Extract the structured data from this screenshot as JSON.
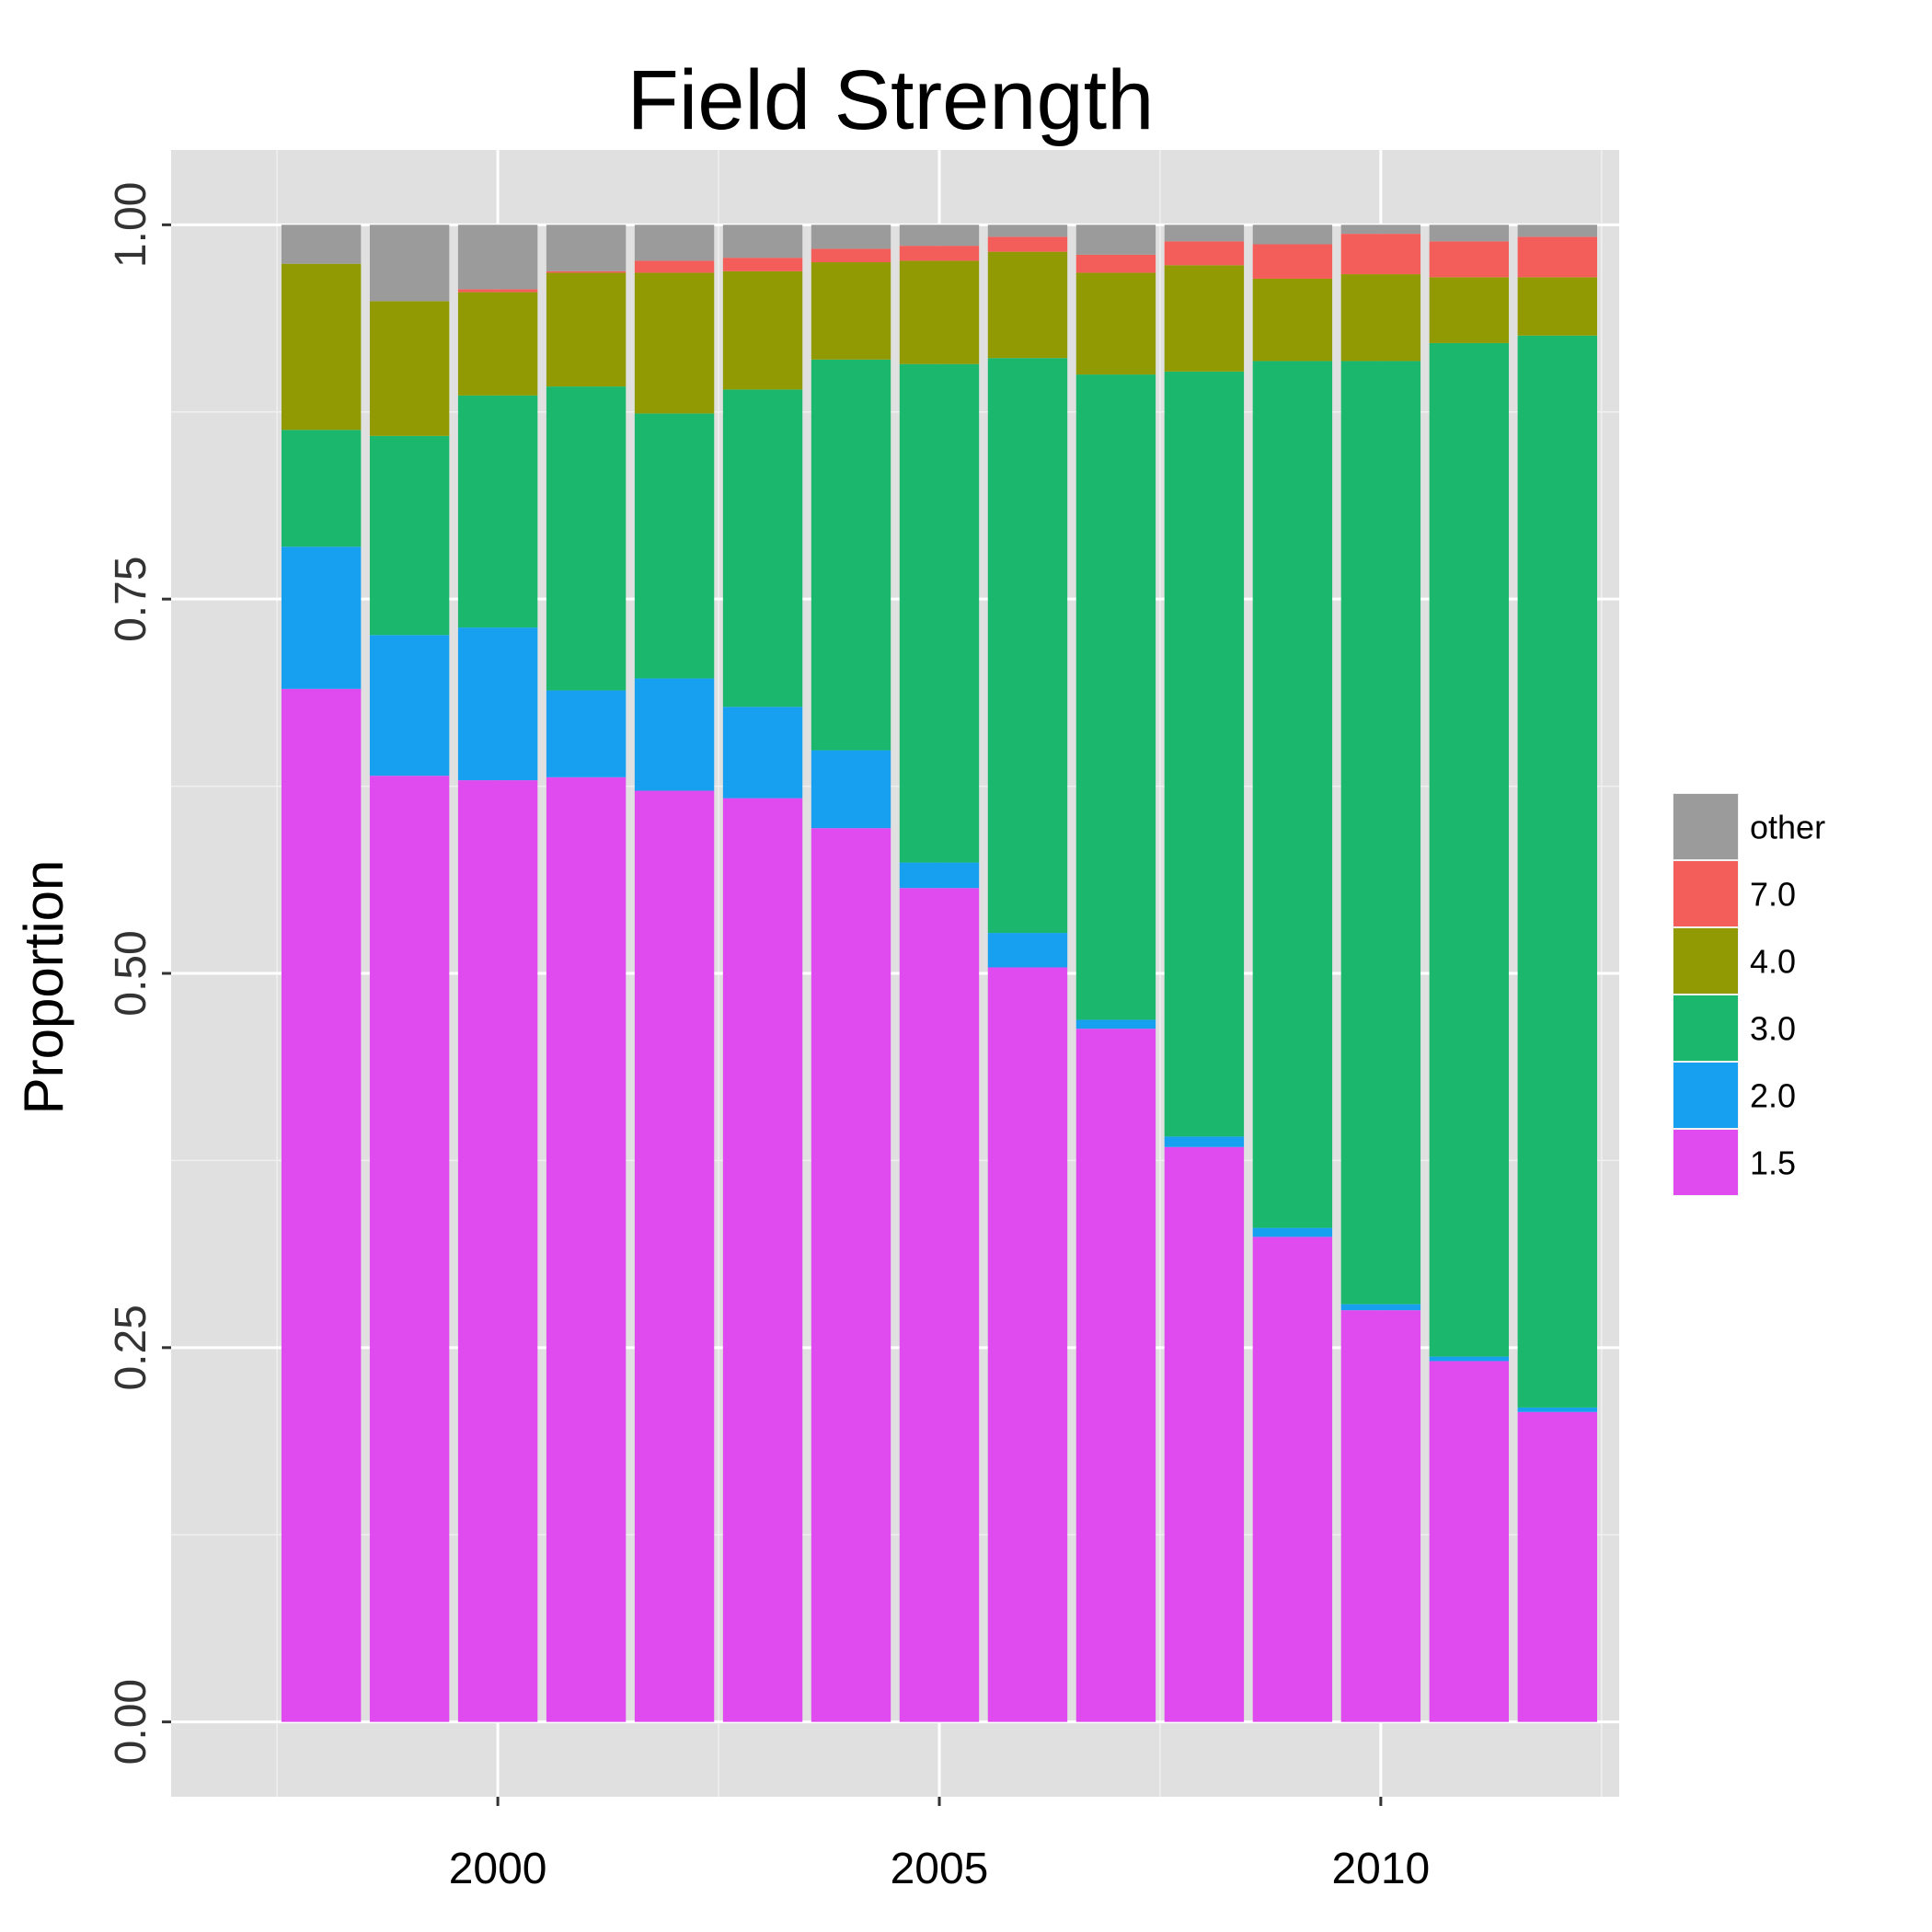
{
  "chart_data": {
    "type": "bar",
    "stacked": true,
    "title": "Field Strength",
    "xlabel": "",
    "ylabel": "Proportion",
    "ylim": [
      -0.05,
      1.05
    ],
    "xlim": [
      1996.3,
      2012.7
    ],
    "grid": true,
    "legend_position": "right",
    "categories": [
      1998,
      1999,
      2000,
      2001,
      2002,
      2003,
      2004,
      2005,
      2006,
      2007,
      2008,
      2009,
      2010,
      2011,
      2012
    ],
    "x_ticks": [
      2000,
      2005,
      2010
    ],
    "x_tick_labels": [
      "2000",
      "2005",
      "2010"
    ],
    "y_ticks": [
      0,
      0.25,
      0.5,
      0.75,
      1
    ],
    "y_tick_labels": [
      "0.00",
      "0.25",
      "0.50",
      "0.75",
      "1.00"
    ],
    "series": [
      {
        "name": "1.5",
        "color": "#E04BEF",
        "values": [
          0.69,
          0.632,
          0.629,
          0.631,
          0.622,
          0.617,
          0.597,
          0.557,
          0.504,
          0.463,
          0.384,
          0.324,
          0.275,
          0.241,
          0.207
        ]
      },
      {
        "name": "2.0",
        "color": "#18A0F0",
        "values": [
          0.095,
          0.094,
          0.102,
          0.058,
          0.075,
          0.061,
          0.052,
          0.017,
          0.023,
          0.006,
          0.007,
          0.006,
          0.004,
          0.003,
          0.003
        ]
      },
      {
        "name": "3.0",
        "color": "#1AB76C",
        "values": [
          0.078,
          0.133,
          0.155,
          0.203,
          0.177,
          0.212,
          0.261,
          0.333,
          0.384,
          0.431,
          0.511,
          0.579,
          0.63,
          0.677,
          0.716
        ]
      },
      {
        "name": "4.0",
        "color": "#919A02",
        "values": [
          0.111,
          0.09,
          0.069,
          0.076,
          0.094,
          0.079,
          0.065,
          0.069,
          0.071,
          0.068,
          0.071,
          0.055,
          0.058,
          0.044,
          0.039
        ]
      },
      {
        "name": "7.0",
        "color": "#F35E5A",
        "values": [
          0.0,
          0.0,
          0.002,
          0.001,
          0.008,
          0.009,
          0.009,
          0.01,
          0.01,
          0.012,
          0.016,
          0.023,
          0.027,
          0.024,
          0.027
        ]
      },
      {
        "name": "other",
        "color": "#9B9B9B",
        "values": [
          0.026,
          0.051,
          0.043,
          0.031,
          0.024,
          0.022,
          0.016,
          0.014,
          0.008,
          0.02,
          0.011,
          0.013,
          0.006,
          0.011,
          0.008
        ]
      }
    ],
    "legend_order": [
      "other",
      "7.0",
      "4.0",
      "3.0",
      "2.0",
      "1.5"
    ]
  }
}
